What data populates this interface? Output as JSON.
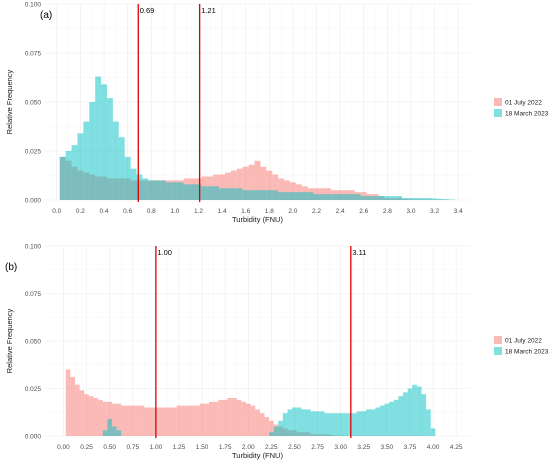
{
  "chart_data": [
    {
      "type": "histogram",
      "panel_label": "(a)",
      "xlabel": "Turbidity (FNU)",
      "ylabel": "Relative Frequency",
      "xlim": [
        -0.1,
        3.5
      ],
      "ylim": [
        0,
        0.1
      ],
      "xticks": [
        0.0,
        0.2,
        0.4,
        0.6,
        0.8,
        1.0,
        1.2,
        1.4,
        1.6,
        1.8,
        2.0,
        2.2,
        2.4,
        2.6,
        2.8,
        3.0,
        3.2,
        3.4
      ],
      "xtick_labels": [
        "0.0",
        "0.2",
        "0.4",
        "0.6",
        "0.8",
        "1.0",
        "1.2",
        "1.4",
        "1.6",
        "1.8",
        "2.0",
        "2.2",
        "2.4",
        "2.6",
        "2.8",
        "3.0",
        "3.2",
        "3.4"
      ],
      "yticks": [
        0,
        0.025,
        0.05,
        0.075,
        0.1
      ],
      "ytick_labels": [
        "0.000",
        "0.025",
        "0.050",
        "0.075",
        "0.100"
      ],
      "bin_start": 0.05,
      "bin_width": 0.05,
      "legend_position": "right",
      "grid": true,
      "series": [
        {
          "name": "01 July 2022",
          "color": "#F8766D",
          "values": [
            0.022,
            0.02,
            0.017,
            0.015,
            0.014,
            0.013,
            0.012,
            0.012,
            0.011,
            0.011,
            0.011,
            0.011,
            0.01,
            0.01,
            0.01,
            0.01,
            0.01,
            0.01,
            0.01,
            0.01,
            0.01,
            0.011,
            0.011,
            0.011,
            0.012,
            0.012,
            0.013,
            0.013,
            0.014,
            0.015,
            0.016,
            0.017,
            0.018,
            0.02,
            0.017,
            0.015,
            0.013,
            0.011,
            0.01,
            0.009,
            0.008,
            0.007,
            0.006,
            0.006,
            0.006,
            0.006,
            0.005,
            0.005,
            0.005,
            0.005,
            0.004,
            0.004,
            0.003,
            0.003,
            0.002,
            0.001,
            0.001,
            0.001,
            0.0005,
            0.0003,
            0.0003,
            0.0002,
            0.0002,
            0.0001,
            0.0001,
            0.0001,
            0.0001
          ]
        },
        {
          "name": "18 March 2023",
          "color": "#00BFC4",
          "values": [
            0.022,
            0.025,
            0.028,
            0.034,
            0.04,
            0.05,
            0.063,
            0.059,
            0.052,
            0.04,
            0.032,
            0.022,
            0.016,
            0.013,
            0.011,
            0.01,
            0.01,
            0.01,
            0.009,
            0.009,
            0.009,
            0.008,
            0.008,
            0.008,
            0.007,
            0.007,
            0.007,
            0.006,
            0.006,
            0.006,
            0.006,
            0.005,
            0.005,
            0.005,
            0.005,
            0.005,
            0.005,
            0.004,
            0.004,
            0.004,
            0.004,
            0.004,
            0.004,
            0.003,
            0.003,
            0.003,
            0.003,
            0.003,
            0.003,
            0.003,
            0.003,
            0.002,
            0.002,
            0.002,
            0.002,
            0.002,
            0.002,
            0.002,
            0.001,
            0.001,
            0.001,
            0.001,
            0.001,
            0.0008,
            0.0006,
            0.0004,
            0.0002
          ]
        }
      ],
      "vlines": [
        {
          "x": 0.69,
          "label": "0.69",
          "color": "#e00000"
        },
        {
          "x": 1.21,
          "label": "1.21",
          "color": "#e00000"
        }
      ]
    },
    {
      "type": "histogram",
      "panel_label": "(b)",
      "xlabel": "Turbidity (FNU)",
      "ylabel": "Relative Frequency",
      "xlim": [
        -0.2,
        4.4
      ],
      "ylim": [
        0,
        0.1
      ],
      "xticks": [
        0.0,
        0.25,
        0.5,
        0.75,
        1.0,
        1.25,
        1.5,
        1.75,
        2.0,
        2.25,
        2.5,
        2.75,
        3.0,
        3.25,
        3.5,
        3.75,
        4.0,
        4.25
      ],
      "xtick_labels": [
        "0.00",
        "0.25",
        "0.50",
        "0.75",
        "1.00",
        "1.25",
        "1.50",
        "1.75",
        "2.00",
        "2.25",
        "2.50",
        "2.75",
        "3.00",
        "3.25",
        "3.50",
        "3.75",
        "4.00",
        "4.25"
      ],
      "yticks": [
        0,
        0.025,
        0.05,
        0.075,
        0.1
      ],
      "ytick_labels": [
        "0.000",
        "0.025",
        "0.050",
        "0.075",
        "0.100"
      ],
      "bin_start": 0.05,
      "bin_width": 0.05,
      "legend_position": "right",
      "grid": true,
      "series": [
        {
          "name": "01 July 2022",
          "color": "#F8766D",
          "values": [
            0.035,
            0.031,
            0.027,
            0.024,
            0.022,
            0.021,
            0.02,
            0.019,
            0.018,
            0.018,
            0.017,
            0.017,
            0.016,
            0.016,
            0.016,
            0.016,
            0.016,
            0.015,
            0.015,
            0.015,
            0.015,
            0.015,
            0.015,
            0.015,
            0.016,
            0.016,
            0.016,
            0.016,
            0.016,
            0.017,
            0.017,
            0.018,
            0.018,
            0.019,
            0.019,
            0.02,
            0.02,
            0.019,
            0.018,
            0.017,
            0.016,
            0.014,
            0.012,
            0.01,
            0.008,
            0.006,
            0.005,
            0.004,
            0.003,
            0.003,
            0.002,
            0.002,
            0.002,
            0.001,
            0.001,
            0.001,
            0.001,
            0.0005,
            0.0003,
            0.0002,
            0.0002,
            0.0001,
            0.0001,
            0.0001,
            0.0001,
            0.0001,
            0.0001,
            0.0001,
            0.0001,
            0.0001,
            0.0001,
            0.0001,
            0.0001,
            0.0001,
            0.0001,
            0.0001,
            0.0001,
            0.0001,
            0,
            0
          ],
          "_note": ""
        },
        {
          "name": "18 March 2023",
          "color": "#00BFC4",
          "values": [
            0,
            0,
            0,
            0,
            0,
            0,
            0,
            0,
            0.003,
            0.009,
            0.005,
            0.003,
            0,
            0,
            0,
            0,
            0,
            0,
            0,
            0,
            0,
            0,
            0,
            0,
            0,
            0,
            0,
            0,
            0,
            0,
            0,
            0,
            0,
            0,
            0,
            0,
            0,
            0,
            0,
            0,
            0,
            0,
            0,
            0,
            0.002,
            0.005,
            0.008,
            0.012,
            0.014,
            0.015,
            0.015,
            0.014,
            0.014,
            0.013,
            0.013,
            0.013,
            0.012,
            0.012,
            0.012,
            0.012,
            0.012,
            0.012,
            0.012,
            0.013,
            0.013,
            0.014,
            0.014,
            0.015,
            0.016,
            0.017,
            0.018,
            0.019,
            0.021,
            0.023,
            0.025,
            0.027,
            0.026,
            0.022,
            0.014,
            0.004
          ]
        }
      ],
      "vlines": [
        {
          "x": 1.0,
          "label": "1.00",
          "color": "#e00000"
        },
        {
          "x": 3.11,
          "label": "3.11",
          "color": "#e00000"
        }
      ]
    }
  ]
}
